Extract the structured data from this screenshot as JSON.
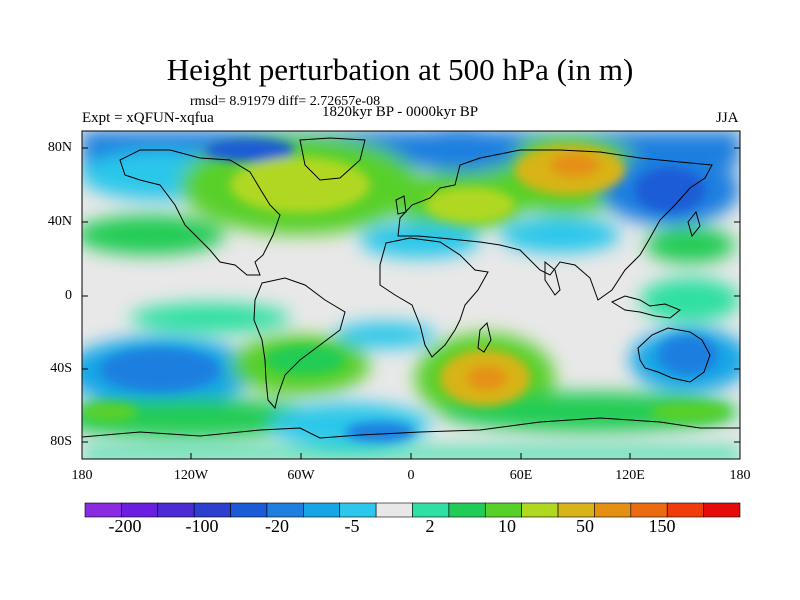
{
  "title": "Height perturbation at 500 hPa (in m)",
  "stats": "rmsd= 8.91979 diff= 2.72657e-08",
  "experiment": "Expt = xQFUN-xqfua",
  "period": "1820kyr BP - 0000kyr BP",
  "season": "JJA",
  "latitude_labels": [
    "80N",
    "40N",
    "0",
    "40S",
    "80S"
  ],
  "longitude_labels": [
    "180",
    "120W",
    "60W",
    "0",
    "60E",
    "120E",
    "180"
  ],
  "colorbar": {
    "colors": [
      "#8a2be2",
      "#6a1fe0",
      "#4b2bd4",
      "#2c3fcf",
      "#1b5bd6",
      "#1e7fe0",
      "#16a6e6",
      "#2cc7ea",
      "#e8e8e8",
      "#2fe0a2",
      "#20cc55",
      "#58d02a",
      "#b0d820",
      "#d8b418",
      "#e59012",
      "#ec6a10",
      "#f03c0a",
      "#e60b0b"
    ],
    "labels": [
      "-200",
      "-100",
      "-20",
      "-5",
      "2",
      "10",
      "50",
      "150"
    ]
  }
}
